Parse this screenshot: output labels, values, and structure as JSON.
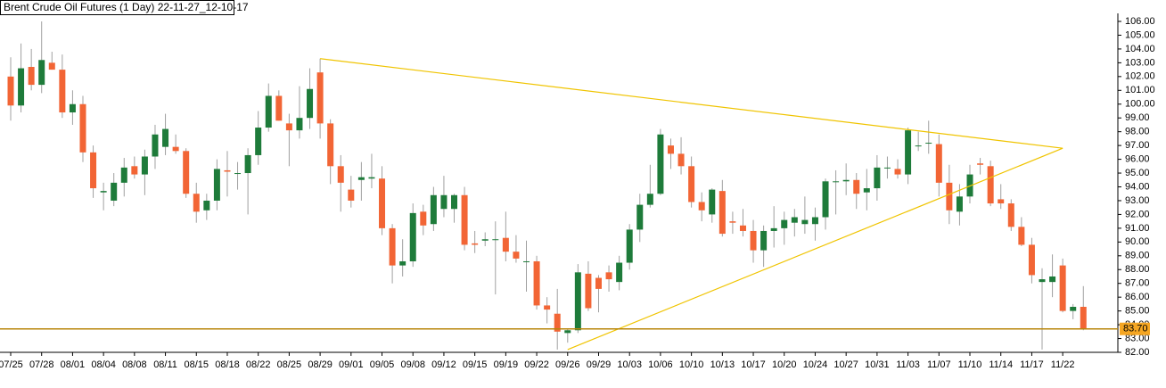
{
  "chart_data": {
    "type": "candlestick",
    "title": "Brent Crude Oil Futures (1 Day) 22-11-27_12-10-17",
    "categories": [
      "07/25",
      null,
      null,
      "07/28",
      null,
      null,
      "08/01",
      null,
      null,
      "08/04",
      null,
      null,
      "08/08",
      null,
      null,
      "08/11",
      null,
      null,
      "08/15",
      null,
      null,
      "08/18",
      null,
      null,
      "08/22",
      null,
      null,
      "08/25",
      null,
      null,
      "08/29",
      null,
      null,
      "09/01",
      null,
      null,
      "09/05",
      null,
      null,
      "09/08",
      null,
      null,
      "09/12",
      null,
      null,
      "09/15",
      null,
      null,
      "09/19",
      null,
      null,
      "09/22",
      null,
      null,
      "09/26",
      null,
      null,
      "09/29",
      null,
      null,
      "10/03",
      null,
      null,
      "10/06",
      null,
      null,
      "10/10",
      null,
      null,
      "10/13",
      null,
      null,
      "10/17",
      null,
      null,
      "10/20",
      null,
      null,
      "10/24",
      null,
      null,
      "10/27",
      null,
      null,
      "10/31",
      null,
      null,
      "11/03",
      null,
      null,
      "11/07",
      null,
      null,
      "11/10",
      null,
      null,
      "11/14",
      null,
      null,
      "11/17",
      null,
      null,
      "11/22",
      null,
      null
    ],
    "open": [
      102.0,
      99.9,
      102.7,
      101.4,
      103.0,
      102.5,
      99.4,
      100.0,
      96.5,
      93.6,
      93.0,
      94.3,
      95.5,
      94.9,
      96.2,
      96.9,
      96.9,
      96.6,
      93.5,
      92.3,
      93.0,
      95.2,
      95.0,
      95.0,
      96.3,
      98.3,
      100.6,
      98.6,
      98.1,
      99.0,
      102.3,
      98.6,
      95.5,
      93.8,
      94.5,
      94.6,
      94.6,
      91.0,
      88.3,
      88.6,
      92.2,
      91.3,
      92.4,
      92.4,
      93.4,
      89.9,
      90.1,
      90.2,
      90.3,
      89.3,
      88.6,
      88.6,
      85.4,
      84.8,
      83.4,
      83.6,
      87.7,
      87.4,
      87.8,
      87.1,
      88.5,
      90.9,
      92.7,
      93.5,
      97.0,
      96.4,
      95.5,
      92.9,
      92.0,
      93.7,
      91.5,
      91.2,
      90.8,
      89.4,
      90.8,
      91.0,
      91.4,
      91.3,
      91.3,
      91.8,
      94.4,
      94.4,
      94.5,
      93.6,
      93.9,
      95.4,
      95.3,
      94.9,
      97.0,
      97.2,
      97.1,
      94.3,
      92.2,
      93.3,
      95.7,
      95.5,
      93.1,
      92.8,
      91.1,
      89.8,
      87.1,
      87.1,
      88.3,
      85.0,
      85.3
    ],
    "high": [
      103.4,
      104.4,
      104.0,
      106.0,
      103.8,
      103.6,
      101.0,
      100.6,
      97.0,
      94.3,
      95.0,
      96.1,
      96.2,
      96.7,
      98.5,
      99.3,
      97.8,
      96.8,
      94.3,
      93.5,
      96.0,
      96.6,
      95.8,
      96.8,
      99.5,
      101.5,
      101.0,
      99.3,
      101.3,
      102.6,
      103.3,
      98.9,
      96.3,
      94.8,
      95.8,
      96.4,
      95.5,
      91.3,
      90.2,
      92.8,
      92.7,
      94.0,
      94.8,
      93.5,
      94.0,
      90.8,
      90.7,
      91.5,
      92.2,
      90.5,
      90.1,
      89.0,
      86.0,
      86.6,
      83.7,
      88.4,
      88.6,
      87.6,
      88.3,
      89.0,
      91.3,
      93.5,
      95.6,
      98.2,
      97.5,
      97.6,
      96.2,
      93.6,
      93.9,
      94.5,
      92.2,
      92.4,
      91.6,
      91.2,
      92.6,
      92.2,
      92.4,
      93.3,
      92.5,
      94.6,
      95.2,
      95.7,
      95.0,
      95.3,
      96.3,
      96.2,
      96.0,
      98.3,
      98.0,
      98.8,
      97.8,
      95.6,
      94.2,
      95.6,
      96.1,
      95.9,
      94.2,
      93.1,
      91.8,
      90.3,
      88.1,
      89.1,
      88.8,
      85.5,
      86.8
    ],
    "low": [
      98.8,
      99.4,
      101.0,
      100.8,
      102.5,
      99.0,
      98.5,
      95.8,
      93.2,
      92.3,
      92.6,
      93.3,
      94.6,
      93.4,
      95.3,
      96.3,
      96.4,
      93.2,
      91.4,
      91.6,
      92.3,
      93.3,
      93.8,
      92.0,
      95.6,
      98.0,
      98.8,
      95.5,
      97.5,
      98.2,
      97.5,
      94.2,
      92.2,
      92.5,
      93.0,
      93.9,
      90.5,
      87.0,
      87.5,
      88.2,
      90.5,
      90.8,
      91.8,
      91.4,
      89.4,
      89.2,
      89.7,
      86.2,
      88.6,
      88.5,
      86.4,
      85.1,
      84.1,
      82.2,
      82.7,
      83.4,
      85.0,
      84.9,
      86.4,
      86.5,
      88.0,
      90.0,
      92.5,
      93.4,
      95.3,
      94.9,
      92.5,
      91.5,
      91.4,
      90.4,
      90.6,
      90.4,
      88.5,
      88.2,
      89.6,
      89.8,
      90.4,
      90.6,
      90.1,
      90.9,
      92.0,
      93.4,
      92.4,
      92.3,
      93.0,
      94.6,
      94.6,
      94.2,
      96.6,
      96.4,
      93.3,
      91.3,
      91.2,
      92.8,
      94.9,
      92.6,
      92.4,
      90.8,
      89.7,
      87.0,
      82.2,
      86.0,
      84.9,
      84.4,
      83.6
    ],
    "close": [
      99.9,
      102.6,
      101.4,
      103.2,
      102.5,
      99.4,
      100.0,
      96.5,
      93.9,
      93.7,
      94.3,
      95.4,
      94.9,
      96.2,
      97.8,
      98.2,
      96.6,
      93.5,
      92.2,
      93.0,
      95.3,
      95.1,
      95.0,
      96.3,
      98.3,
      100.6,
      98.8,
      98.1,
      99.0,
      101.1,
      98.6,
      95.5,
      94.3,
      93.0,
      94.7,
      94.7,
      91.0,
      88.3,
      88.6,
      92.1,
      91.2,
      93.4,
      93.4,
      93.4,
      89.8,
      89.8,
      90.2,
      90.2,
      89.3,
      88.8,
      88.6,
      85.4,
      85.1,
      83.5,
      83.6,
      87.8,
      85.2,
      86.6,
      87.3,
      88.5,
      90.9,
      92.7,
      93.5,
      97.8,
      96.4,
      95.5,
      92.9,
      92.3,
      93.8,
      90.6,
      91.4,
      90.8,
      89.4,
      90.8,
      91.0,
      91.6,
      91.8,
      91.6,
      91.8,
      94.4,
      94.4,
      94.5,
      93.5,
      93.9,
      95.4,
      95.4,
      94.9,
      98.1,
      97.0,
      97.2,
      94.3,
      92.3,
      93.3,
      94.9,
      95.6,
      92.8,
      92.8,
      91.1,
      89.8,
      87.6,
      87.3,
      87.5,
      85.0,
      85.3,
      83.7
    ],
    "up_color": "#1e7b3a",
    "down_color": "#f26535",
    "wick_color": "#a0a0a0",
    "ylim": [
      82,
      106
    ],
    "yticks": [
      {
        "value": 82,
        "label": "82.00"
      },
      {
        "value": 83,
        "label": "83.00"
      },
      {
        "value": 84,
        "label": "84.00"
      },
      {
        "value": 85,
        "label": "85.00"
      },
      {
        "value": 86,
        "label": "86.00"
      },
      {
        "value": 87,
        "label": "87.00"
      },
      {
        "value": 88,
        "label": "88.00"
      },
      {
        "value": 89,
        "label": "89.00"
      },
      {
        "value": 90,
        "label": "90.00"
      },
      {
        "value": 91,
        "label": "91.00"
      },
      {
        "value": 92,
        "label": "92.00"
      },
      {
        "value": 93,
        "label": "93.00"
      },
      {
        "value": 94,
        "label": "94.00"
      },
      {
        "value": 95,
        "label": "95.00"
      },
      {
        "value": 96,
        "label": "96.00"
      },
      {
        "value": 97,
        "label": "97.00"
      },
      {
        "value": 98,
        "label": "98.00"
      },
      {
        "value": 99,
        "label": "99.00"
      },
      {
        "value": 100,
        "label": "100.00"
      },
      {
        "value": 101,
        "label": "101.00"
      },
      {
        "value": 102,
        "label": "102.00"
      },
      {
        "value": 103,
        "label": "103.00"
      },
      {
        "value": 104,
        "label": "104.00"
      },
      {
        "value": 105,
        "label": "105.00"
      },
      {
        "value": 106,
        "label": "106.00"
      }
    ],
    "last_price": {
      "value": 83.7,
      "label": "83.70",
      "color": "#b8860b",
      "label_color": "#f5a623"
    },
    "trendlines": [
      {
        "x": [
          "08/29",
          "11/22"
        ],
        "y": [
          103.3,
          96.8
        ],
        "color": "#f0c400"
      },
      {
        "x": [
          "09/26",
          "11/22"
        ],
        "y": [
          82.2,
          96.8
        ],
        "color": "#f0c400"
      }
    ]
  }
}
